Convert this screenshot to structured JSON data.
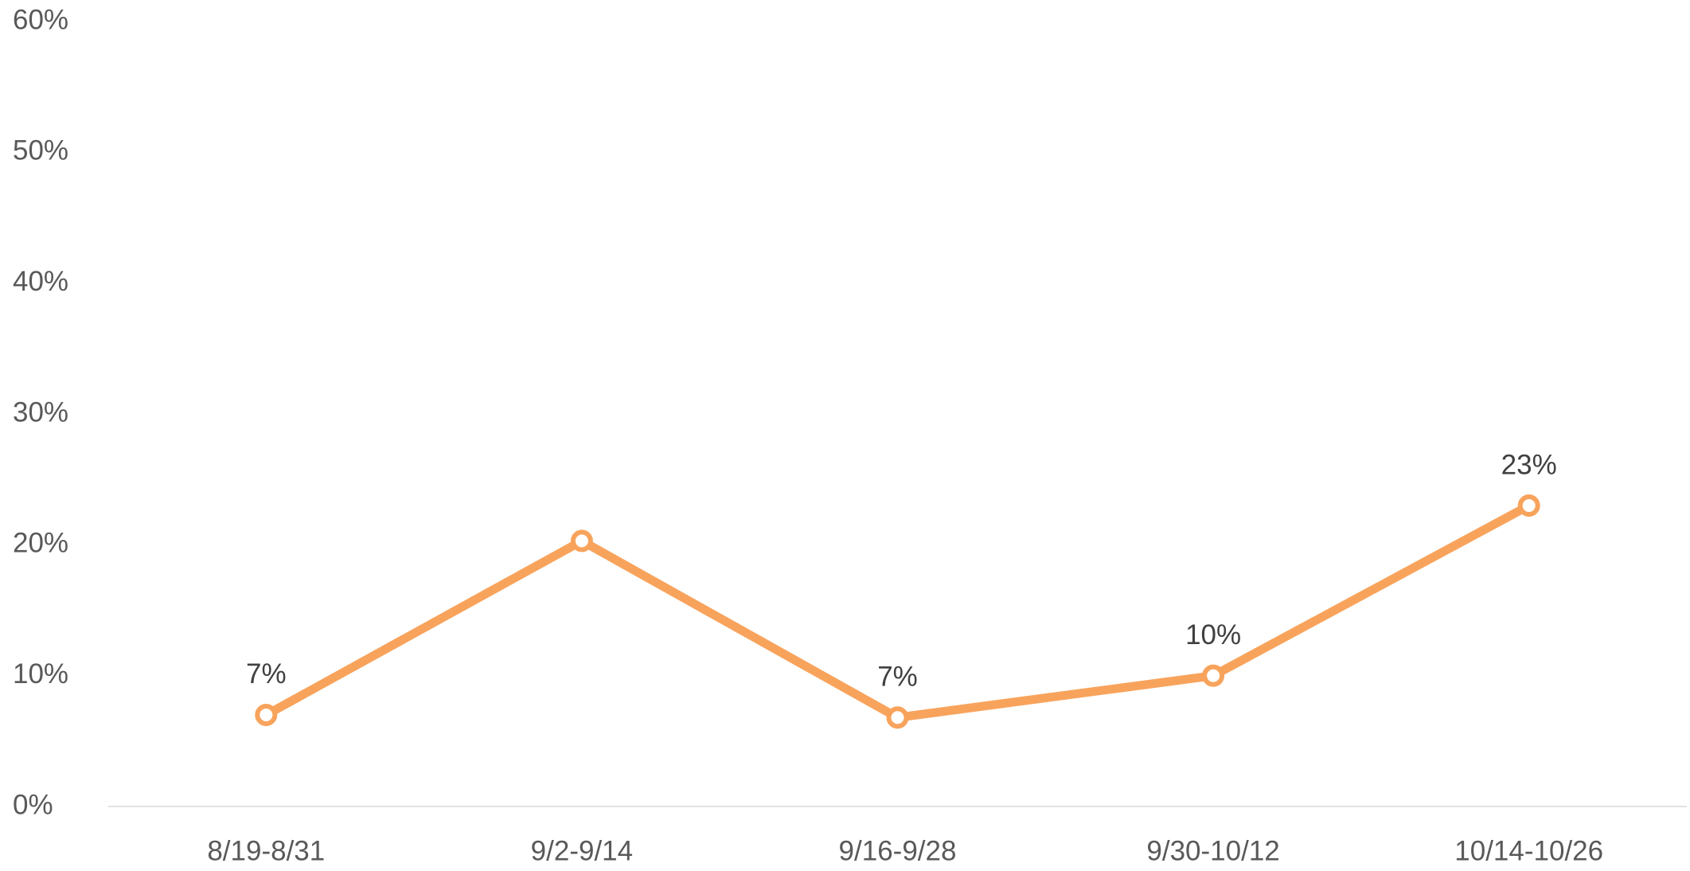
{
  "chart_data": {
    "type": "line",
    "categories": [
      "8/19-8/31",
      "9/2-9/14",
      "9/16-9/28",
      "9/30-10/12",
      "10/14-10/26"
    ],
    "series": [
      {
        "color": "#f8a35c",
        "values": [
          7,
          20.3,
          6.8,
          10,
          23
        ],
        "value_labels": [
          "7%",
          null,
          "7%",
          "10%",
          "23%"
        ]
      }
    ],
    "ylim": [
      0,
      60
    ],
    "yticks": [
      {
        "value": 0,
        "label": "0%"
      },
      {
        "value": 10,
        "label": "10%"
      },
      {
        "value": 20,
        "label": "20%"
      },
      {
        "value": 30,
        "label": "30%"
      },
      {
        "value": 40,
        "label": "40%"
      },
      {
        "value": 50,
        "label": "50%"
      },
      {
        "value": 60,
        "label": "60%"
      }
    ],
    "grid": false
  }
}
